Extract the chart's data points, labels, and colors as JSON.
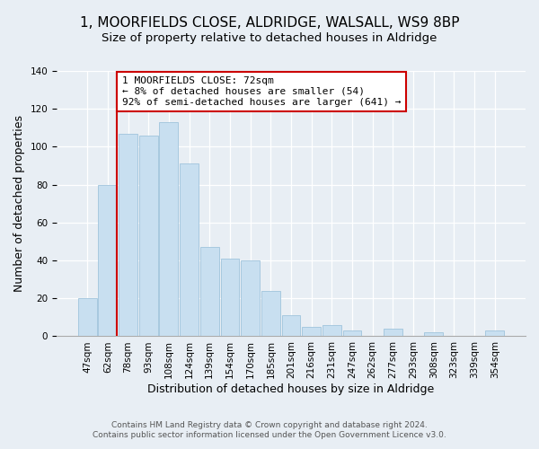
{
  "title": "1, MOORFIELDS CLOSE, ALDRIDGE, WALSALL, WS9 8BP",
  "subtitle": "Size of property relative to detached houses in Aldridge",
  "xlabel": "Distribution of detached houses by size in Aldridge",
  "ylabel": "Number of detached properties",
  "bar_labels": [
    "47sqm",
    "62sqm",
    "78sqm",
    "93sqm",
    "108sqm",
    "124sqm",
    "139sqm",
    "154sqm",
    "170sqm",
    "185sqm",
    "201sqm",
    "216sqm",
    "231sqm",
    "247sqm",
    "262sqm",
    "277sqm",
    "293sqm",
    "308sqm",
    "323sqm",
    "339sqm",
    "354sqm"
  ],
  "bar_heights": [
    20,
    80,
    107,
    106,
    113,
    91,
    47,
    41,
    40,
    24,
    11,
    5,
    6,
    3,
    0,
    4,
    0,
    2,
    0,
    0,
    3
  ],
  "bar_color": "#c8dff0",
  "bar_edge_color": "#a0c4dc",
  "vline_color": "#cc0000",
  "annotation_title": "1 MOORFIELDS CLOSE: 72sqm",
  "annotation_line1": "← 8% of detached houses are smaller (54)",
  "annotation_line2": "92% of semi-detached houses are larger (641) →",
  "annotation_box_color": "#ffffff",
  "annotation_box_edge": "#cc0000",
  "ylim": [
    0,
    140
  ],
  "footer1": "Contains HM Land Registry data © Crown copyright and database right 2024.",
  "footer2": "Contains public sector information licensed under the Open Government Licence v3.0.",
  "bg_color": "#e8eef4",
  "title_fontsize": 11,
  "subtitle_fontsize": 9.5,
  "ylabel_fontsize": 9,
  "xlabel_fontsize": 9,
  "tick_fontsize": 7.5,
  "footer_fontsize": 6.5,
  "annotation_fontsize": 8.0
}
